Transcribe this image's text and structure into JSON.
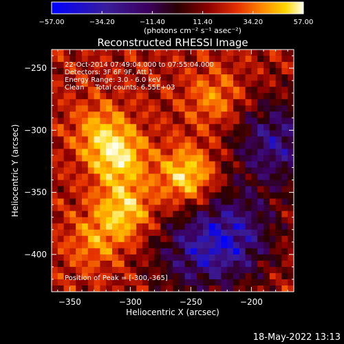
{
  "colorbar": {
    "tick_labels": [
      "-57.00",
      "-34.20",
      "-11.40",
      "11.40",
      "34.20",
      "57.00"
    ],
    "units": "(photons cm⁻² s⁻¹ asec⁻²)",
    "range": [
      -57.0,
      57.0
    ],
    "colormap": [
      "#0000ff",
      "#3a1d9a",
      "#3b0060",
      "#2a0000",
      "#8b0000",
      "#e63200",
      "#ff8c00",
      "#ffd700",
      "#fffff0"
    ]
  },
  "title": "Reconstructed RHESSI Image",
  "info": {
    "line1": "22-Oct-2014 07:49:04.000 to 07:55:04.000",
    "line2": "Detectors: 3F 6F 9F, Att 1",
    "line3": "Energy Range: 3.0 - 6.0 keV",
    "line4": "Clean     Total counts: 6.55E+03",
    "peak": "Position of Peak = [-300,-365]"
  },
  "footer_timestamp": "18-May-2022 13:13",
  "chart_data": {
    "type": "heatmap",
    "title": "Reconstructed RHESSI Image",
    "xlabel": "Heliocentric X (arcsec)",
    "ylabel": "Heliocentric Y (arcsec)",
    "xlim": [
      -365,
      -165
    ],
    "ylim": [
      -430,
      -235
    ],
    "x_ticks": [
      -350,
      -300,
      -250,
      -200
    ],
    "x_tick_labels": [
      "-350",
      "-300",
      "-250",
      "-200"
    ],
    "y_ticks": [
      -250,
      -300,
      -350,
      -400
    ],
    "y_tick_labels": [
      "-250",
      "-300",
      "-350",
      "-400"
    ],
    "value_range": [
      -57.0,
      57.0
    ],
    "peak_position": [
      -300,
      -365
    ],
    "bright_regions": [
      {
        "x": -253,
        "y": -337,
        "strength": 1.0
      },
      {
        "x": -310,
        "y": -322,
        "strength": 0.95
      },
      {
        "x": -305,
        "y": -365,
        "strength": 0.9
      },
      {
        "x": -325,
        "y": -300,
        "strength": 0.6
      },
      {
        "x": -230,
        "y": -275,
        "strength": 0.55
      },
      {
        "x": -330,
        "y": -390,
        "strength": 0.5
      }
    ],
    "dark_regions": [
      {
        "x": -180,
        "y": -310,
        "strength": 1.0
      },
      {
        "x": -215,
        "y": -385,
        "strength": 1.0
      },
      {
        "x": -250,
        "y": -400,
        "strength": 0.7
      }
    ]
  }
}
